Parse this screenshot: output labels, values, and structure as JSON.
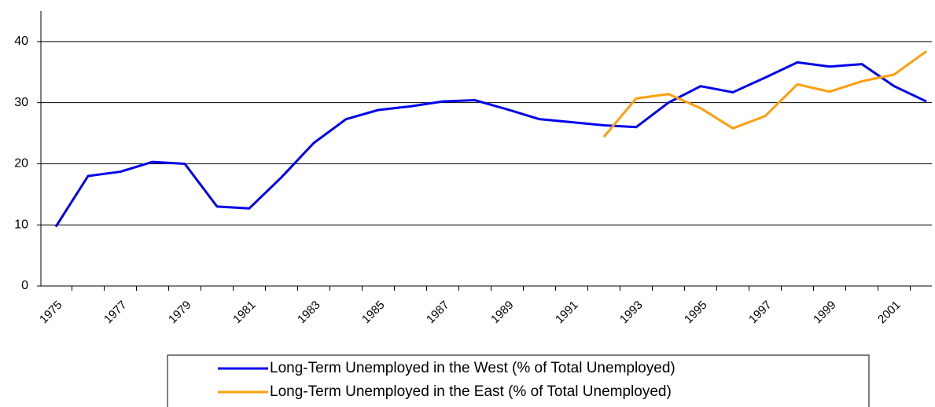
{
  "chart_data": {
    "type": "line",
    "categories": [
      "1975",
      null,
      "1977",
      null,
      "1979",
      null,
      "1981",
      null,
      "1983",
      null,
      "1985",
      null,
      "1987",
      null,
      "1989",
      null,
      "1991",
      null,
      "1993",
      null,
      "1995",
      null,
      "1997",
      null,
      "1999",
      null,
      "2001",
      null
    ],
    "series": [
      {
        "name": "Long-Term Unemployed in the West (% of Total Unemployed)",
        "color": "#0000ee",
        "values": [
          9.7,
          18.0,
          18.7,
          20.3,
          20.0,
          13.0,
          12.7,
          17.8,
          23.4,
          27.3,
          28.8,
          29.4,
          30.2,
          30.4,
          28.9,
          27.3,
          26.8,
          26.3,
          26.0,
          30.0,
          32.7,
          31.7,
          34.1,
          36.6,
          35.9,
          36.3,
          32.7,
          30.2
        ]
      },
      {
        "name": "Long-Term Unemployed in the East (% of Total Unemployed)",
        "color": "#ff9e0d",
        "values": [
          null,
          null,
          null,
          null,
          null,
          null,
          null,
          null,
          null,
          null,
          null,
          null,
          null,
          null,
          null,
          null,
          null,
          24.4,
          30.7,
          31.4,
          29.1,
          25.8,
          27.8,
          33.0,
          31.8,
          33.5,
          34.6,
          38.4
        ]
      }
    ],
    "ylim": [
      0,
      45
    ],
    "yticks": [
      0,
      10,
      20,
      30,
      40
    ],
    "grid": true
  }
}
